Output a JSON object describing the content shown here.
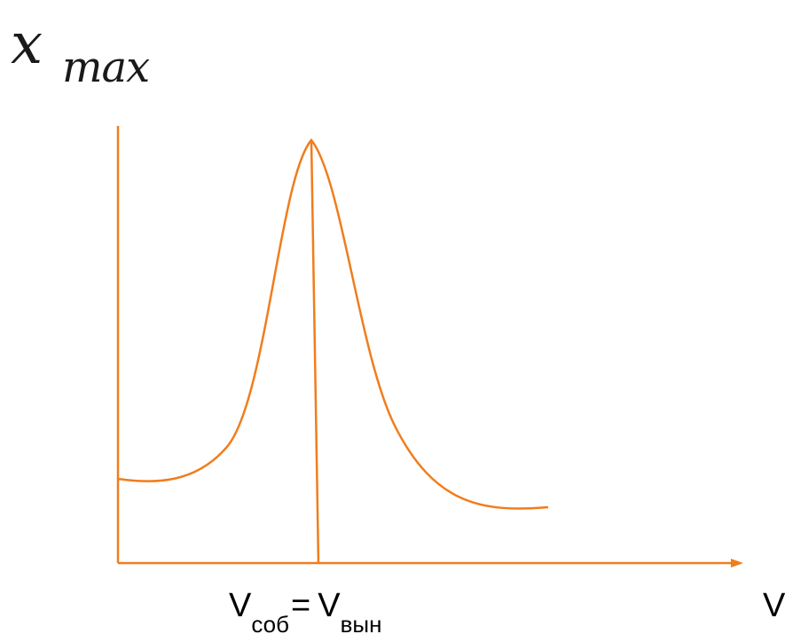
{
  "diagram": {
    "y_axis_label": {
      "symbol": "x",
      "subscript": "max"
    },
    "x_axis_label": "V",
    "resonance_marker": {
      "left_symbol": "V",
      "left_subscript": "соб",
      "equals": "=",
      "right_symbol": "V",
      "right_subscript": "вын"
    },
    "colors": {
      "axis": "#f07d1c",
      "curve": "#f07d1c",
      "text": "#000000"
    }
  }
}
